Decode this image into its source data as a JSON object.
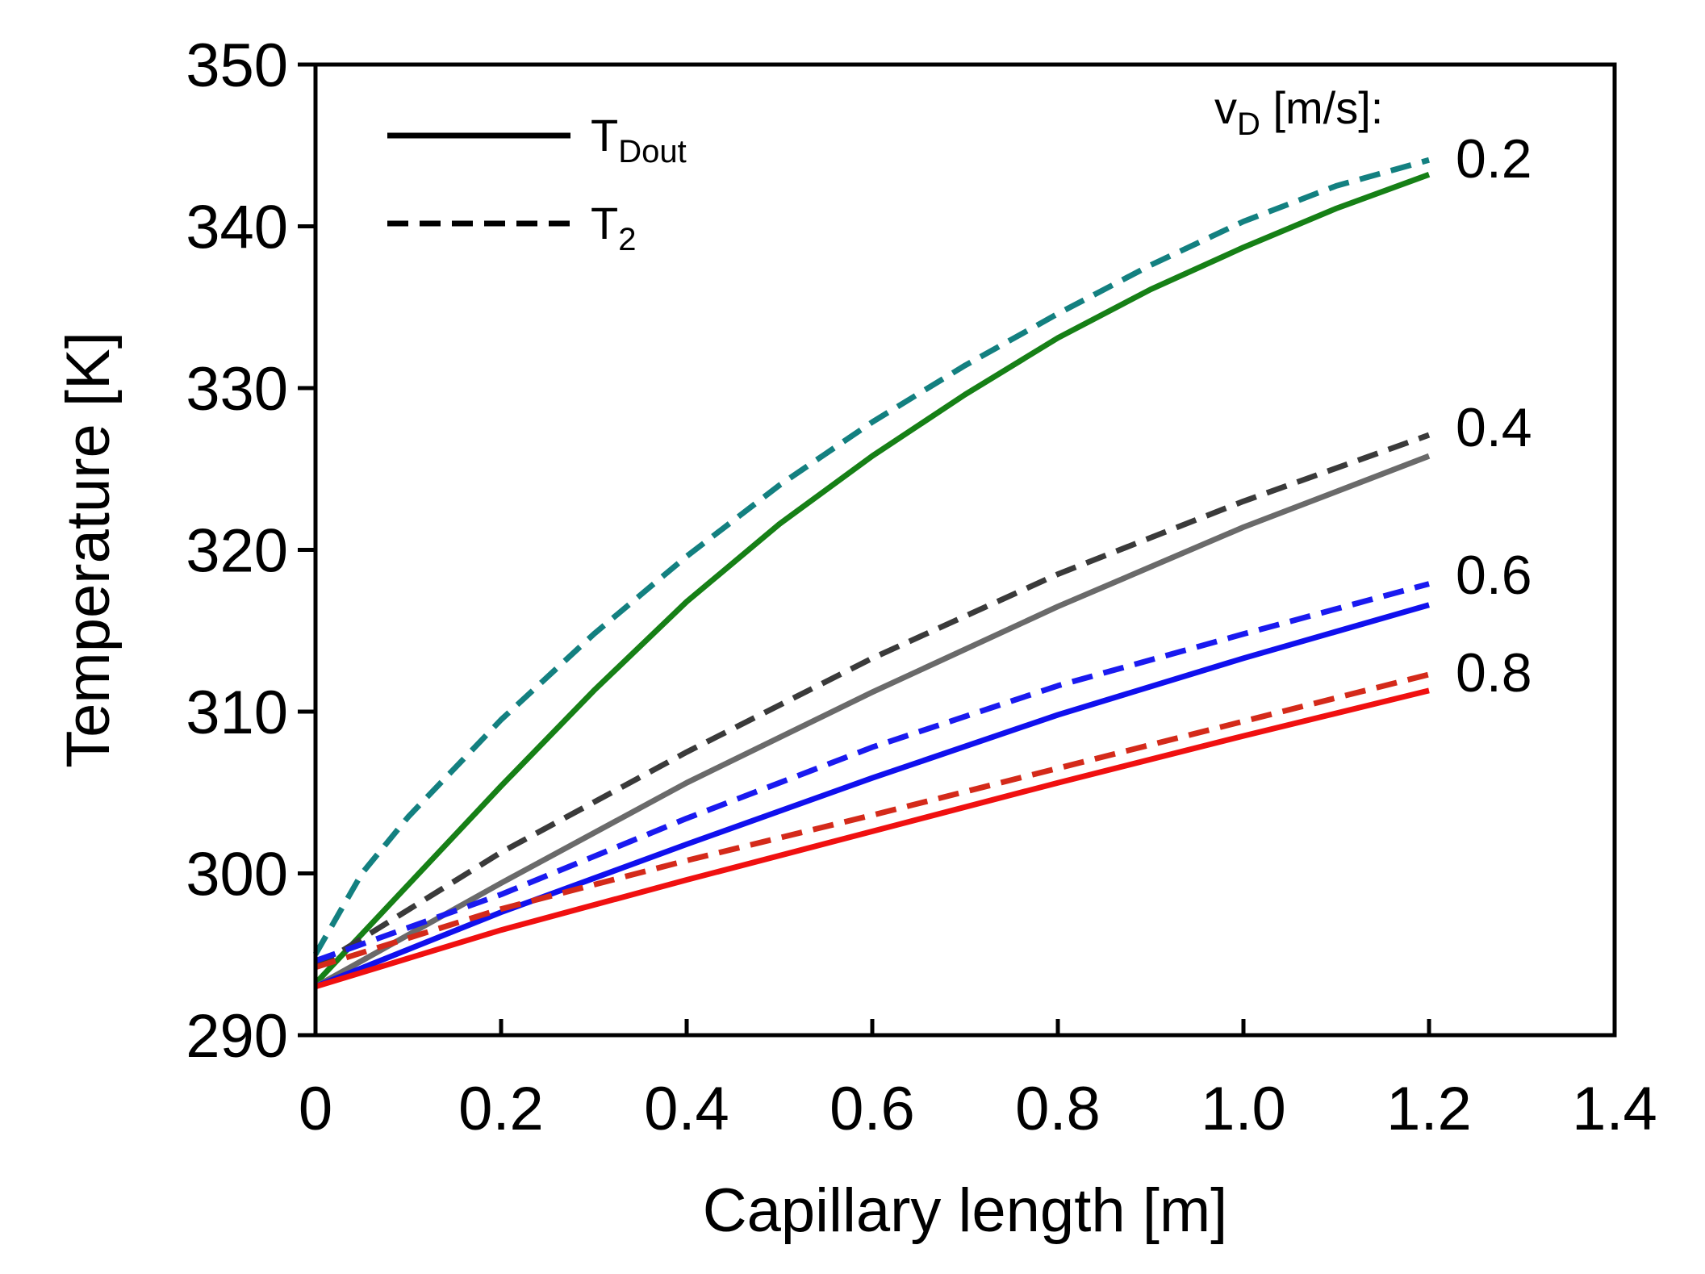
{
  "chart_data": {
    "type": "line",
    "title": "",
    "xlabel": "Capillary length [m]",
    "ylabel": "Temperature [K]",
    "xlim": [
      0,
      1.4
    ],
    "ylim": [
      290,
      350
    ],
    "xticks": [
      0,
      0.2,
      0.4,
      0.6,
      0.8,
      1.0,
      1.2,
      1.4
    ],
    "xtick_labels": [
      "0",
      "0.2",
      "0.4",
      "0.6",
      "0.8",
      "1.0",
      "1.2",
      "1.4"
    ],
    "yticks": [
      290,
      300,
      310,
      320,
      330,
      340,
      350
    ],
    "ytick_labels": [
      "290",
      "300",
      "310",
      "320",
      "330",
      "340",
      "350"
    ],
    "grid": false,
    "legend": {
      "position": "top-left",
      "entries": [
        {
          "base": "T",
          "sub": "Dout",
          "style": "solid"
        },
        {
          "base": "T",
          "sub": "2",
          "style": "dashed"
        }
      ]
    },
    "group_title": {
      "base": "v",
      "sub": "D",
      "rest": " [m/s]:"
    },
    "series": [
      {
        "name": "T2 vD=0.2",
        "style": "dashed",
        "color": "#138080",
        "label": "",
        "x": [
          0,
          0.05,
          0.1,
          0.2,
          0.3,
          0.4,
          0.5,
          0.6,
          0.7,
          0.8,
          0.9,
          1.0,
          1.1,
          1.2
        ],
        "values": [
          295,
          300,
          303.5,
          309.5,
          314.8,
          319.6,
          324,
          327.9,
          331.4,
          334.6,
          337.6,
          340.3,
          342.5,
          344.1
        ]
      },
      {
        "name": "TDout vD=0.2",
        "style": "solid",
        "color": "#168016",
        "label": "0.2",
        "x": [
          0,
          0.1,
          0.2,
          0.3,
          0.4,
          0.5,
          0.6,
          0.7,
          0.8,
          0.9,
          1.0,
          1.1,
          1.2
        ],
        "values": [
          293.2,
          299.3,
          305.4,
          311.3,
          316.8,
          321.6,
          325.8,
          329.6,
          333.1,
          336.1,
          338.7,
          341.1,
          343.2
        ]
      },
      {
        "name": "T2 vD=0.4",
        "style": "dashed",
        "color": "#3a3a3a",
        "label": "",
        "x": [
          0,
          0.2,
          0.4,
          0.6,
          0.8,
          1.0,
          1.2
        ],
        "values": [
          294.2,
          301.3,
          307.5,
          313.3,
          318.5,
          323,
          327.1
        ]
      },
      {
        "name": "TDout vD=0.4",
        "style": "solid",
        "color": "#6a6a6a",
        "label": "0.4",
        "x": [
          0,
          0.2,
          0.4,
          0.6,
          0.8,
          1.0,
          1.2
        ],
        "values": [
          293,
          299.4,
          305.6,
          311.2,
          316.5,
          321.4,
          325.8
        ]
      },
      {
        "name": "T2 vD=0.6",
        "style": "dashed",
        "color": "#1a1af0",
        "label": "",
        "x": [
          0,
          0.2,
          0.4,
          0.6,
          0.8,
          1.0,
          1.2
        ],
        "values": [
          294.6,
          298.7,
          303.4,
          307.8,
          311.6,
          314.8,
          317.9
        ]
      },
      {
        "name": "TDout vD=0.6",
        "style": "solid",
        "color": "#1010ee",
        "label": "0.6",
        "x": [
          0,
          0.2,
          0.4,
          0.6,
          0.8,
          1.0,
          1.2
        ],
        "values": [
          293,
          297.6,
          301.8,
          305.9,
          309.8,
          313.3,
          316.6
        ]
      },
      {
        "name": "T2 vD=0.8",
        "style": "dashed",
        "color": "#d42a1a",
        "label": "",
        "x": [
          0,
          0.2,
          0.4,
          0.6,
          0.8,
          1.0,
          1.2
        ],
        "values": [
          294.2,
          297.8,
          300.8,
          303.6,
          306.5,
          309.4,
          312.3
        ]
      },
      {
        "name": "TDout vD=0.8",
        "style": "solid",
        "color": "#f01010",
        "label": "0.8",
        "x": [
          0,
          0.2,
          0.4,
          0.6,
          0.8,
          1.0,
          1.2
        ],
        "values": [
          293,
          296.5,
          299.6,
          302.6,
          305.6,
          308.5,
          311.3
        ]
      }
    ]
  }
}
